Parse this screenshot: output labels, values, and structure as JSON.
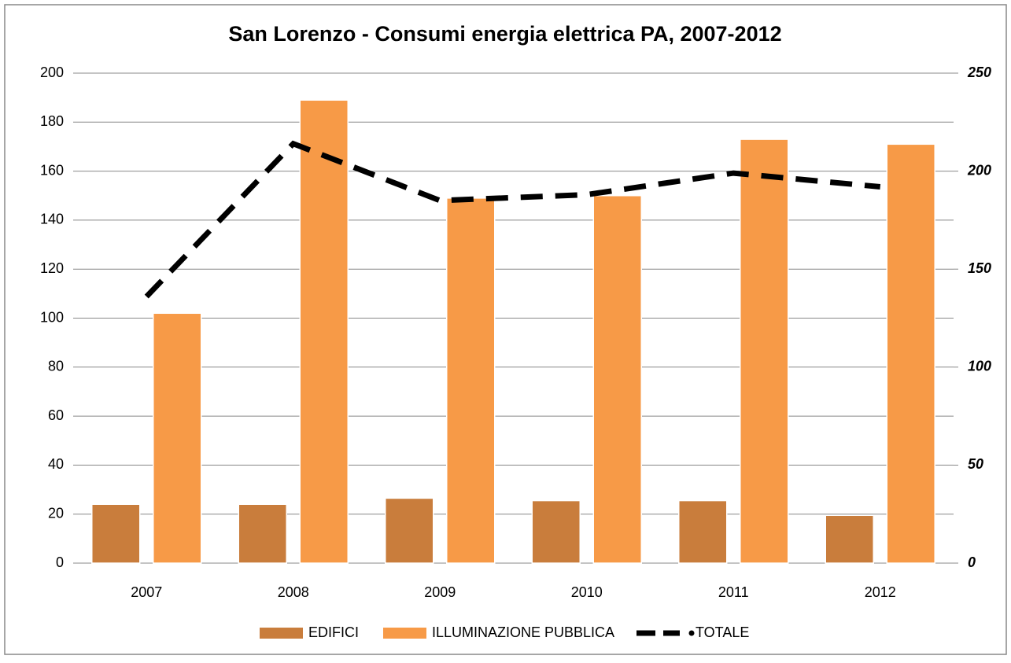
{
  "chart_data": {
    "type": "bar_line",
    "title": "San Lorenzo - Consumi energia elettrica PA, 2007-2012",
    "categories": [
      "2007",
      "2008",
      "2009",
      "2010",
      "2011",
      "2012"
    ],
    "series": [
      {
        "name": "EDIFICI",
        "type": "bar",
        "color": "#c97d3c",
        "values": [
          24,
          24,
          26.5,
          25.5,
          25.5,
          19.5
        ]
      },
      {
        "name": "ILLUMINAZIONE PUBBLICA",
        "type": "bar",
        "color": "#f79a47",
        "values": [
          102,
          189,
          149,
          150,
          173,
          171
        ]
      },
      {
        "name": "TOTALE",
        "type": "line",
        "axis": "y2",
        "color": "#000000",
        "values": [
          136,
          214,
          185,
          188,
          199,
          192
        ]
      }
    ],
    "ylim": [
      0,
      200
    ],
    "yticks": [
      0,
      20,
      40,
      60,
      80,
      100,
      120,
      140,
      160,
      180,
      200
    ],
    "y2lim": [
      0,
      250
    ],
    "y2ticks": [
      0,
      50,
      100,
      150,
      200,
      250
    ],
    "grid": true,
    "legend": "bottom"
  }
}
